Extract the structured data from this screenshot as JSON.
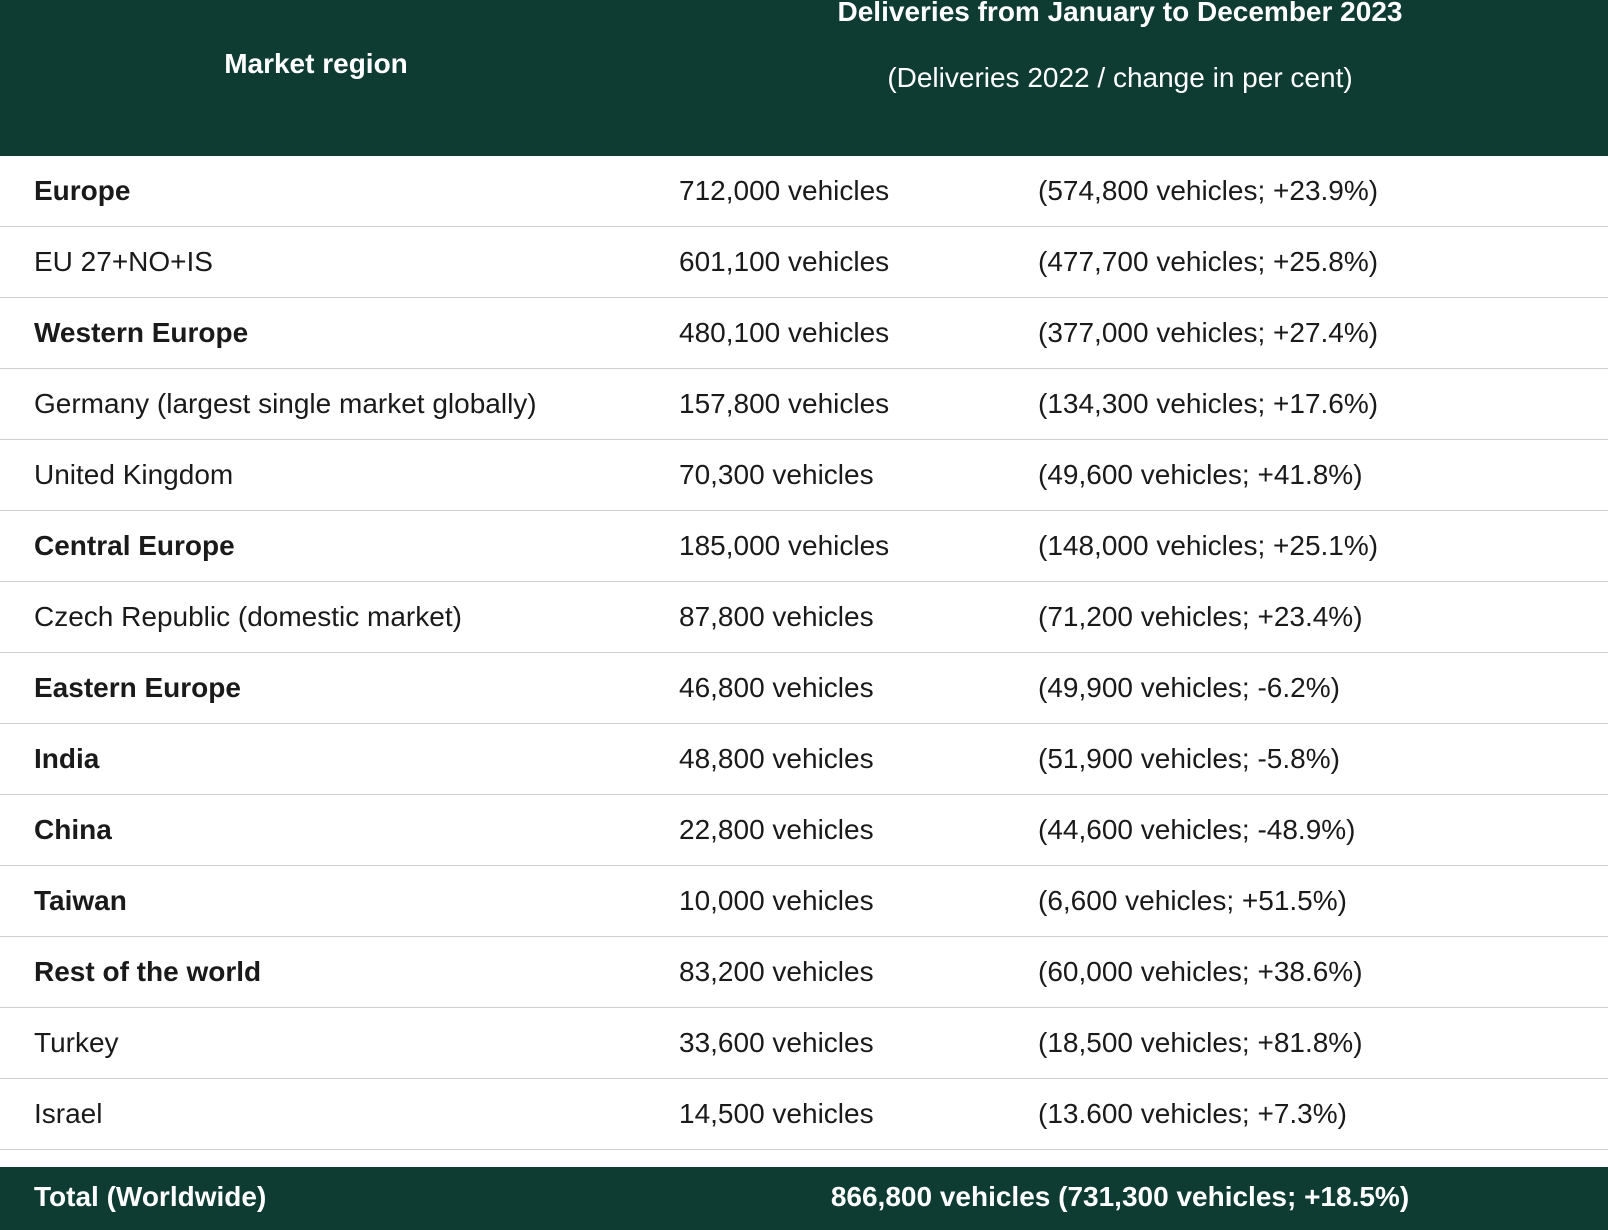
{
  "header": {
    "region_label": "Market region",
    "deliveries_title": "Deliveries from January to December 2023",
    "deliveries_subtitle": "(Deliveries 2022 / change in per cent)"
  },
  "rows": [
    {
      "region": "Europe",
      "bold": true,
      "d2023": "712,000 vehicles",
      "d2022": "(574,800 vehicles; +23.9%)"
    },
    {
      "region": "EU 27+NO+IS",
      "bold": false,
      "d2023": "601,100 vehicles",
      "d2022": "(477,700 vehicles; +25.8%)"
    },
    {
      "region": "Western Europe",
      "bold": true,
      "d2023": "480,100 vehicles",
      "d2022": "(377,000 vehicles; +27.4%)"
    },
    {
      "region": "Germany (largest single market globally)",
      "bold": false,
      "d2023": "157,800 vehicles",
      "d2022": "(134,300 vehicles; +17.6%)"
    },
    {
      "region": "United Kingdom",
      "bold": false,
      "d2023": "70,300 vehicles",
      "d2022": "(49,600 vehicles; +41.8%)"
    },
    {
      "region": "Central Europe",
      "bold": true,
      "d2023": "185,000 vehicles",
      "d2022": "(148,000 vehicles; +25.1%)"
    },
    {
      "region": "Czech Republic (domestic market)",
      "bold": false,
      "d2023": "87,800 vehicles",
      "d2022": "(71,200 vehicles; +23.4%)"
    },
    {
      "region": "Eastern Europe",
      "bold": true,
      "d2023": "46,800 vehicles",
      "d2022": "(49,900 vehicles; -6.2%)"
    },
    {
      "region": "India",
      "bold": true,
      "d2023": "48,800 vehicles",
      "d2022": "(51,900 vehicles; -5.8%)"
    },
    {
      "region": "China",
      "bold": true,
      "d2023": "22,800 vehicles",
      "d2022": "(44,600 vehicles; -48.9%)"
    },
    {
      "region": "Taiwan",
      "bold": true,
      "d2023": "10,000 vehicles",
      "d2022": "(6,600 vehicles; +51.5%)"
    },
    {
      "region": "Rest of the world",
      "bold": true,
      "d2023": "83,200 vehicles",
      "d2022": "(60,000 vehicles; +38.6%)"
    },
    {
      "region": "Turkey",
      "bold": false,
      "d2023": "33,600 vehicles",
      "d2022": "(18,500 vehicles; +81.8%)"
    },
    {
      "region": "Israel",
      "bold": false,
      "d2023": "14,500 vehicles",
      "d2022": "(13.600 vehicles; +7.3%)"
    }
  ],
  "footer": {
    "label": "Total (Worldwide)",
    "value": "866,800 vehicles (731,300 vehicles; +18.5%)"
  },
  "colors": {
    "header_bg": "#0e3b32",
    "divider": "#cfcfcf"
  }
}
